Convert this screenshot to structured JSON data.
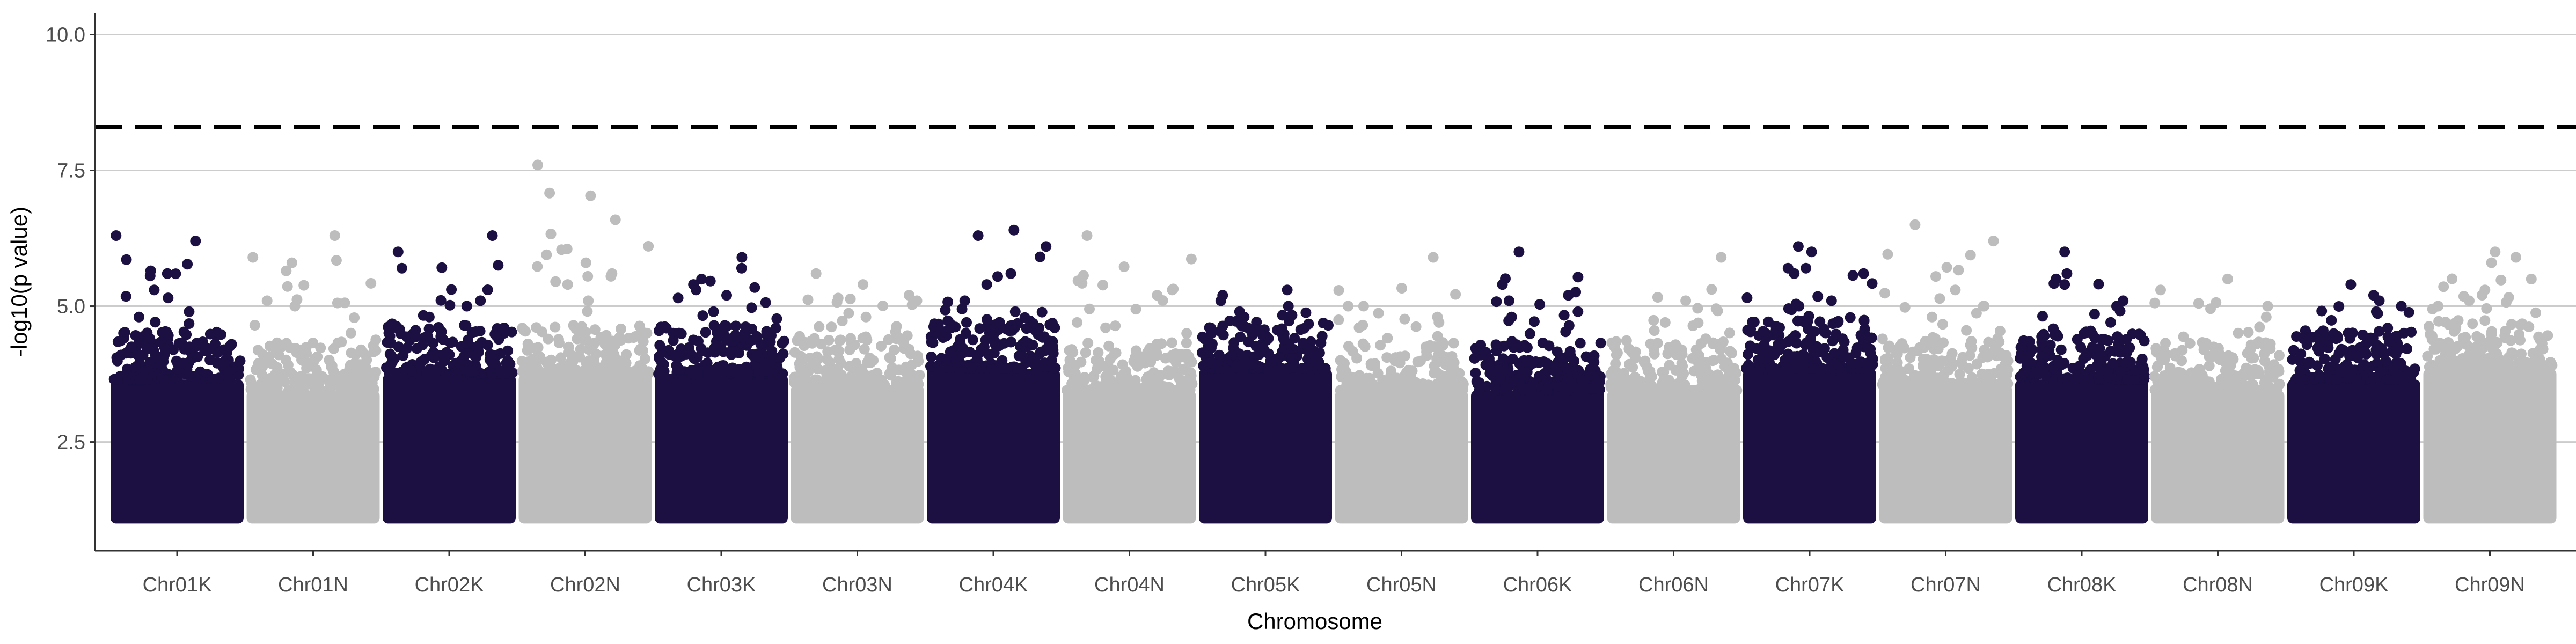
{
  "chart_data": {
    "type": "scatter",
    "title": "",
    "xlabel": "Chromosome",
    "ylabel": "-log10(p value)",
    "ylim": [
      0.5,
      10.4
    ],
    "yticks": [
      2.5,
      5.0,
      7.5,
      10.0
    ],
    "ytick_labels": [
      "2.5",
      "5.0",
      "7.5",
      "10.0"
    ],
    "grid": "horizontal major lines",
    "legend": "none",
    "colors": {
      "odd": "#1b1041",
      "even": "#bdbdbd",
      "threshold": "#000000",
      "grid": "#cccccc",
      "axis": "#333333"
    },
    "threshold": {
      "value": 8.3,
      "style": "dashed"
    },
    "min_plotted_value": 1.0,
    "categories": [
      "Chr01K",
      "Chr01N",
      "Chr02K",
      "Chr02N",
      "Chr03K",
      "Chr03N",
      "Chr04K",
      "Chr04N",
      "Chr05K",
      "Chr05N",
      "Chr06K",
      "Chr06N",
      "Chr07K",
      "Chr07N",
      "Chr08K",
      "Chr08N",
      "Chr09K",
      "Chr09N"
    ],
    "series": [
      {
        "chromosome": "Chr01K",
        "max": 6.3,
        "typical_top": 4.2,
        "peaks": [
          6.3,
          6.2,
          5.6,
          5.3,
          4.9,
          4.8
        ]
      },
      {
        "chromosome": "Chr01N",
        "max": 6.3,
        "typical_top": 4.0,
        "peaks": [
          6.3,
          5.9,
          5.8,
          5.1,
          5.0
        ]
      },
      {
        "chromosome": "Chr02K",
        "max": 6.3,
        "typical_top": 4.3,
        "peaks": [
          6.3,
          6.0,
          5.7,
          5.1,
          5.0,
          4.8
        ]
      },
      {
        "chromosome": "Chr02N",
        "max": 7.6,
        "typical_top": 4.3,
        "peaks": [
          7.6,
          5.8,
          5.6,
          5.4,
          5.1
        ]
      },
      {
        "chromosome": "Chr03K",
        "max": 5.9,
        "typical_top": 4.3,
        "peaks": [
          5.9,
          5.7,
          5.4,
          5.3,
          5.2,
          4.9
        ]
      },
      {
        "chromosome": "Chr03N",
        "max": 5.6,
        "typical_top": 4.1,
        "peaks": [
          5.6,
          5.4,
          5.2,
          5.1,
          4.8
        ]
      },
      {
        "chromosome": "Chr04K",
        "max": 6.4,
        "typical_top": 4.4,
        "peaks": [
          6.4,
          6.3,
          6.1,
          5.6,
          5.4,
          5.1
        ]
      },
      {
        "chromosome": "Chr04N",
        "max": 6.3,
        "typical_top": 4.0,
        "peaks": [
          6.3,
          5.3,
          5.2,
          4.7,
          4.5
        ]
      },
      {
        "chromosome": "Chr05K",
        "max": 5.3,
        "typical_top": 4.4,
        "peaks": [
          5.3,
          5.2,
          5.1,
          5.0,
          4.9,
          4.8
        ]
      },
      {
        "chromosome": "Chr05N",
        "max": 5.9,
        "typical_top": 4.0,
        "peaks": [
          5.9,
          5.0,
          4.8,
          4.7
        ]
      },
      {
        "chromosome": "Chr06K",
        "max": 6.0,
        "typical_top": 4.0,
        "peaks": [
          6.0,
          5.2,
          5.1,
          4.9,
          4.8
        ]
      },
      {
        "chromosome": "Chr06N",
        "max": 5.9,
        "typical_top": 4.0,
        "peaks": [
          5.9,
          5.1,
          4.7,
          4.4
        ]
      },
      {
        "chromosome": "Chr07K",
        "max": 6.1,
        "typical_top": 4.4,
        "peaks": [
          6.1,
          6.0,
          5.7,
          5.7,
          5.6,
          5.1,
          5.0
        ]
      },
      {
        "chromosome": "Chr07N",
        "max": 6.5,
        "typical_top": 4.1,
        "peaks": [
          6.5,
          6.2,
          5.3,
          5.0,
          4.8
        ]
      },
      {
        "chromosome": "Chr08K",
        "max": 6.0,
        "typical_top": 4.2,
        "peaks": [
          6.0,
          5.6,
          5.5,
          5.4,
          5.1,
          5.0
        ]
      },
      {
        "chromosome": "Chr08N",
        "max": 5.5,
        "typical_top": 4.0,
        "peaks": [
          5.5,
          5.3,
          5.0,
          4.8
        ]
      },
      {
        "chromosome": "Chr09K",
        "max": 5.4,
        "typical_top": 4.2,
        "peaks": [
          5.4,
          5.2,
          5.1,
          5.0,
          4.9
        ]
      },
      {
        "chromosome": "Chr09N",
        "max": 6.0,
        "typical_top": 4.4,
        "peaks": [
          6.0,
          5.9,
          5.8,
          5.3,
          5.1,
          5.0
        ]
      }
    ]
  }
}
